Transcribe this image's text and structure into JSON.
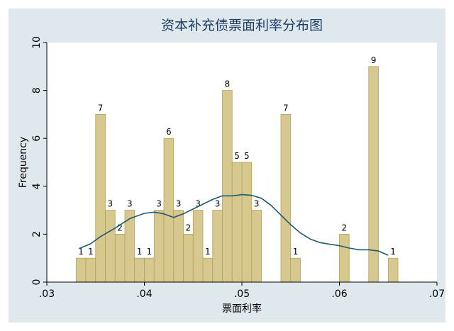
{
  "chart_data": {
    "type": "bar",
    "title": "资本补充债票面利率分布图",
    "xlabel": "票面利率",
    "ylabel": "Frequency",
    "xlim": [
      0.03,
      0.07
    ],
    "ylim": [
      0,
      10
    ],
    "x_ticks": [
      0.03,
      0.04,
      0.05,
      0.06,
      0.07
    ],
    "x_tick_labels": [
      ".03",
      ".04",
      ".05",
      ".06",
      ".07"
    ],
    "y_ticks": [
      0,
      2,
      4,
      6,
      8,
      10
    ],
    "y_tick_labels": [
      "0",
      "2",
      "4",
      "6",
      "8",
      "10"
    ],
    "bin_width": 0.001,
    "bars": [
      {
        "x": 0.0335,
        "value": 1
      },
      {
        "x": 0.0345,
        "value": 1
      },
      {
        "x": 0.0355,
        "value": 7
      },
      {
        "x": 0.0365,
        "value": 3
      },
      {
        "x": 0.0375,
        "value": 2
      },
      {
        "x": 0.0385,
        "value": 3
      },
      {
        "x": 0.0395,
        "value": 1
      },
      {
        "x": 0.0405,
        "value": 1
      },
      {
        "x": 0.0415,
        "value": 3
      },
      {
        "x": 0.0425,
        "value": 6
      },
      {
        "x": 0.0435,
        "value": 3
      },
      {
        "x": 0.0445,
        "value": 2
      },
      {
        "x": 0.0455,
        "value": 3
      },
      {
        "x": 0.0465,
        "value": 1
      },
      {
        "x": 0.0475,
        "value": 3
      },
      {
        "x": 0.0485,
        "value": 8
      },
      {
        "x": 0.0495,
        "value": 5
      },
      {
        "x": 0.0505,
        "value": 5
      },
      {
        "x": 0.0515,
        "value": 3
      },
      {
        "x": 0.0545,
        "value": 7
      },
      {
        "x": 0.0555,
        "value": 1
      },
      {
        "x": 0.0605,
        "value": 2
      },
      {
        "x": 0.0635,
        "value": 9
      },
      {
        "x": 0.0655,
        "value": 1
      }
    ],
    "density_curve": [
      [
        0.0333,
        1.4
      ],
      [
        0.0345,
        1.6
      ],
      [
        0.0355,
        1.9
      ],
      [
        0.037,
        2.25
      ],
      [
        0.0385,
        2.65
      ],
      [
        0.04,
        2.87
      ],
      [
        0.041,
        2.92
      ],
      [
        0.042,
        2.85
      ],
      [
        0.043,
        2.7
      ],
      [
        0.044,
        2.85
      ],
      [
        0.045,
        3.05
      ],
      [
        0.046,
        3.25
      ],
      [
        0.047,
        3.45
      ],
      [
        0.048,
        3.6
      ],
      [
        0.049,
        3.6
      ],
      [
        0.05,
        3.65
      ],
      [
        0.051,
        3.62
      ],
      [
        0.052,
        3.5
      ],
      [
        0.053,
        3.2
      ],
      [
        0.054,
        2.8
      ],
      [
        0.055,
        2.4
      ],
      [
        0.056,
        2.05
      ],
      [
        0.057,
        1.8
      ],
      [
        0.058,
        1.65
      ],
      [
        0.059,
        1.58
      ],
      [
        0.06,
        1.52
      ],
      [
        0.061,
        1.42
      ],
      [
        0.062,
        1.35
      ],
      [
        0.063,
        1.35
      ],
      [
        0.064,
        1.3
      ],
      [
        0.065,
        1.12
      ]
    ],
    "bar_color": "#d6c88e",
    "bar_edge_color": "#b7a35a",
    "curve_color": "#1e5b73",
    "background_color": "#dfe8ed",
    "plot_background": "#ffffff",
    "grid": false,
    "legend": "none"
  }
}
